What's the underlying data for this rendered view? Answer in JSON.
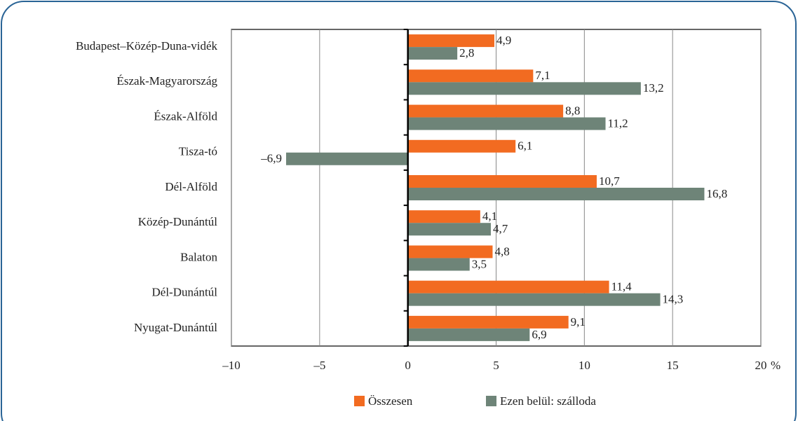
{
  "chart_data": {
    "type": "barh",
    "categories": [
      "Budapest–Közép-Duna-vidék",
      "Észak-Magyarország",
      "Észak-Alföld",
      "Tisza-tó",
      "Dél-Alföld",
      "Közép-Dunántúl",
      "Balaton",
      "Dél-Dunántúl",
      "Nyugat-Dunántúl"
    ],
    "series": [
      {
        "name": "Összesen",
        "color": "#f26b21",
        "values": [
          4.9,
          7.1,
          8.8,
          6.1,
          10.7,
          4.1,
          4.8,
          11.4,
          9.1
        ],
        "value_labels": [
          "4,9",
          "7,1",
          "8,8",
          "6,1",
          "10,7",
          "4,1",
          "4,8",
          "11,4",
          "9,1"
        ]
      },
      {
        "name": "Ezen belül: szálloda",
        "color": "#6e8478",
        "values": [
          2.8,
          13.2,
          11.2,
          -6.9,
          16.8,
          4.7,
          3.5,
          14.3,
          6.9
        ],
        "value_labels": [
          "2,8",
          "13,2",
          "11,2",
          "–6,9",
          "16,8",
          "4,7",
          "3,5",
          "14,3",
          "6,9"
        ]
      }
    ],
    "xlim": [
      -10,
      20
    ],
    "xticks": [
      {
        "value": -10,
        "label": "–10"
      },
      {
        "value": -5,
        "label": "–5"
      },
      0,
      5,
      10,
      15,
      20
    ],
    "x_unit": "%",
    "grid": true,
    "legend": "bottom"
  }
}
